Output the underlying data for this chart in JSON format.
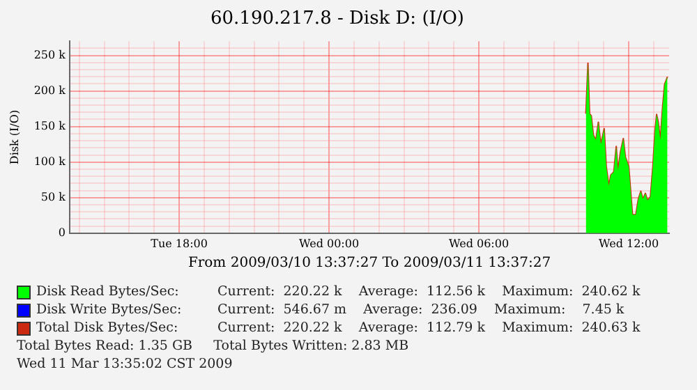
{
  "chart_data": {
    "type": "line",
    "title": "60.190.217.8 - Disk D: (I/O)",
    "ylabel": "Disk (I/O)",
    "xlabel": "From 2009/03/10 13:37:27 To 2009/03/11 13:37:27",
    "x": [
      "2009-03-11T10:17",
      "2009-03-11T10:22",
      "2009-03-11T10:26",
      "2009-03-11T10:30",
      "2009-03-11T10:35",
      "2009-03-11T10:41",
      "2009-03-11T10:47",
      "2009-03-11T10:53",
      "2009-03-11T11:01",
      "2009-03-11T11:06",
      "2009-03-11T11:12",
      "2009-03-11T11:17",
      "2009-03-11T11:24",
      "2009-03-11T11:30",
      "2009-03-11T11:34",
      "2009-03-11T11:40",
      "2009-03-11T11:47",
      "2009-03-11T11:52",
      "2009-03-11T12:00",
      "2009-03-11T12:04",
      "2009-03-11T12:09",
      "2009-03-11T12:17",
      "2009-03-11T12:23",
      "2009-03-11T12:29",
      "2009-03-11T12:34",
      "2009-03-11T12:40",
      "2009-03-11T12:45",
      "2009-03-11T12:52",
      "2009-03-11T12:58",
      "2009-03-11T13:03",
      "2009-03-11T13:07",
      "2009-03-11T13:11",
      "2009-03-11T13:16",
      "2009-03-11T13:21",
      "2009-03-11T13:26",
      "2009-03-11T13:33"
    ],
    "series": [
      {
        "name": "Disk Read Bytes/Sec:",
        "type": "area",
        "color": "#00ff00",
        "values": [
          168000,
          239000,
          168000,
          165000,
          138000,
          131000,
          156000,
          125000,
          147000,
          94000,
          67000,
          82000,
          86000,
          122000,
          88000,
          114000,
          133000,
          107000,
          94000,
          64000,
          26000,
          26000,
          48000,
          59000,
          48000,
          56000,
          46000,
          51000,
          94000,
          144000,
          167000,
          156000,
          131000,
          175000,
          209000,
          220000
        ]
      },
      {
        "name": "Disk Write Bytes/Sec:",
        "type": "line",
        "color": "#0000ff",
        "values": [
          null,
          null,
          null,
          null,
          null,
          null,
          null,
          null,
          null,
          null,
          null,
          null,
          null,
          null,
          null,
          null,
          null,
          null,
          null,
          null,
          null,
          null,
          null,
          null,
          null,
          null,
          null,
          null,
          null,
          null,
          null,
          null,
          null,
          null,
          null,
          null
        ]
      },
      {
        "name": "Total Disk Bytes/Sec:",
        "type": "line",
        "color": "#cc2a10",
        "values": [
          168000,
          239000,
          168000,
          165000,
          138000,
          131000,
          156000,
          125000,
          147000,
          94000,
          67000,
          82000,
          86000,
          122000,
          88000,
          114000,
          133000,
          107000,
          94000,
          64000,
          26000,
          26000,
          48000,
          59000,
          48000,
          56000,
          46000,
          51000,
          94000,
          144000,
          167000,
          156000,
          131000,
          175000,
          209000,
          220000
        ]
      }
    ],
    "xlim": [
      "2009-03-10T13:37",
      "2009-03-11T13:37"
    ],
    "xticks": [
      {
        "value": "2009-03-10T14:00",
        "label": null
      },
      {
        "value": "2009-03-10T15:00",
        "label": null
      },
      {
        "value": "2009-03-10T16:00",
        "label": null
      },
      {
        "value": "2009-03-10T17:00",
        "label": null
      },
      {
        "value": "2009-03-10T18:00",
        "label": "Tue 18:00"
      },
      {
        "value": "2009-03-10T19:00",
        "label": null
      },
      {
        "value": "2009-03-10T20:00",
        "label": null
      },
      {
        "value": "2009-03-10T21:00",
        "label": null
      },
      {
        "value": "2009-03-10T22:00",
        "label": null
      },
      {
        "value": "2009-03-10T23:00",
        "label": null
      },
      {
        "value": "2009-03-11T00:00",
        "label": "Wed 00:00"
      },
      {
        "value": "2009-03-11T01:00",
        "label": null
      },
      {
        "value": "2009-03-11T02:00",
        "label": null
      },
      {
        "value": "2009-03-11T03:00",
        "label": null
      },
      {
        "value": "2009-03-11T04:00",
        "label": null
      },
      {
        "value": "2009-03-11T05:00",
        "label": null
      },
      {
        "value": "2009-03-11T06:00",
        "label": "Wed 06:00"
      },
      {
        "value": "2009-03-11T07:00",
        "label": null
      },
      {
        "value": "2009-03-11T08:00",
        "label": null
      },
      {
        "value": "2009-03-11T09:00",
        "label": null
      },
      {
        "value": "2009-03-11T10:00",
        "label": null
      },
      {
        "value": "2009-03-11T11:00",
        "label": null
      },
      {
        "value": "2009-03-11T12:00",
        "label": "Wed 12:00"
      },
      {
        "value": "2009-03-11T13:00",
        "label": null
      }
    ],
    "ylim": [
      0,
      270000
    ],
    "yticks": [
      0,
      {
        "value": 10000,
        "label": null
      },
      {
        "value": 20000,
        "label": null
      },
      {
        "value": 30000,
        "label": null
      },
      {
        "value": 40000,
        "label": null
      },
      {
        "value": 50000,
        "label": "50 k"
      },
      {
        "value": 60000,
        "label": null
      },
      {
        "value": 70000,
        "label": null
      },
      {
        "value": 80000,
        "label": null
      },
      {
        "value": 90000,
        "label": null
      },
      {
        "value": 100000,
        "label": "100 k"
      },
      {
        "value": 110000,
        "label": null
      },
      {
        "value": 120000,
        "label": null
      },
      {
        "value": 130000,
        "label": null
      },
      {
        "value": 140000,
        "label": null
      },
      {
        "value": 150000,
        "label": "150 k"
      },
      {
        "value": 160000,
        "label": null
      },
      {
        "value": 170000,
        "label": null
      },
      {
        "value": 180000,
        "label": null
      },
      {
        "value": 190000,
        "label": null
      },
      {
        "value": 200000,
        "label": "200 k"
      },
      {
        "value": 210000,
        "label": null
      },
      {
        "value": 220000,
        "label": null
      },
      {
        "value": 230000,
        "label": null
      },
      {
        "value": 240000,
        "label": null
      },
      {
        "value": 250000,
        "label": "250 k"
      },
      {
        "value": 260000,
        "label": null
      }
    ],
    "grid": true,
    "legend": "bottom",
    "marker": "none",
    "line_style": "solid",
    "annotations": [
      "Current:  220.22 k    Average:  112.56 k    Maximum:  240.62 k",
      "Current:  546.67 m    Average:  236.09    Maximum:    7.45 k",
      "Current:  220.22 k    Average:  112.79 k    Maximum:  240.63 k",
      "Total Bytes Read: 1.35 GB     Total Bytes Written: 2.83 MB",
      "Wed 11 Mar 13:35:02 CST 2009"
    ]
  }
}
